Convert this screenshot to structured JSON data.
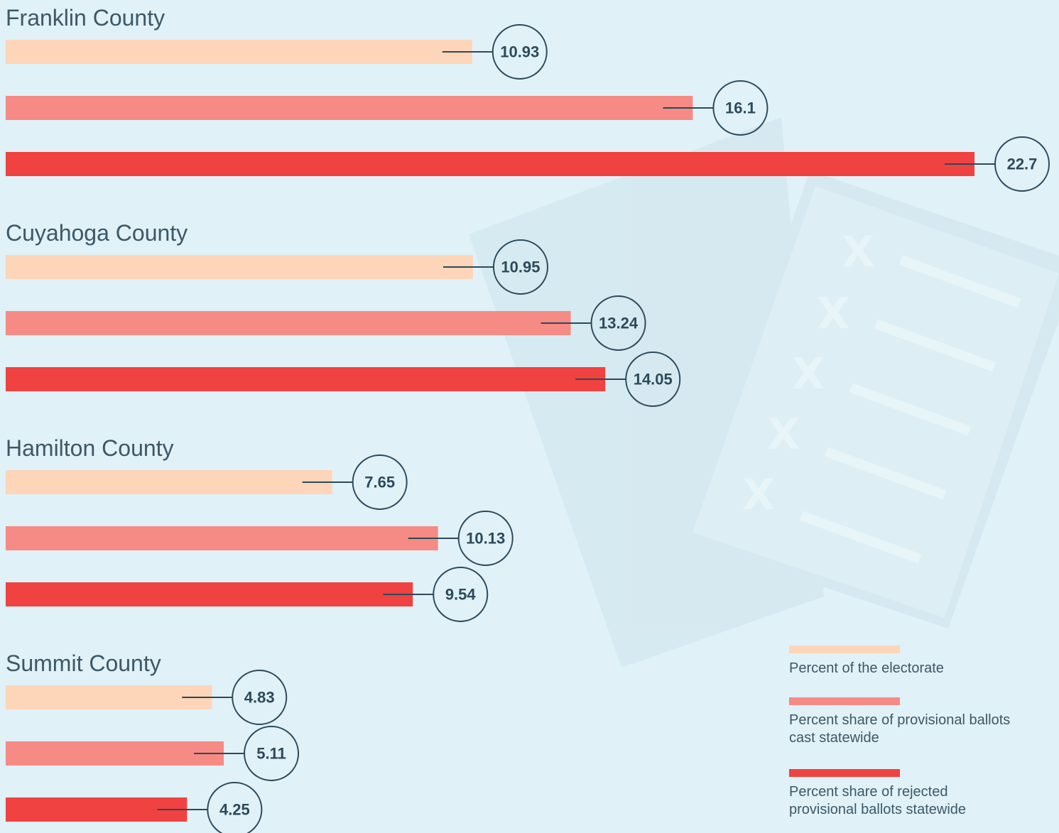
{
  "chart_data": {
    "type": "bar",
    "categories": [
      "Franklin County",
      "Cuyahoga County",
      "Hamilton County",
      "Summit County"
    ],
    "series": [
      {
        "name": "Percent of the electorate",
        "color": "#fdd5b8",
        "values": [
          10.93,
          10.95,
          7.65,
          4.83
        ]
      },
      {
        "name": "Percent share of provisional ballots cast statewide",
        "color": "#f58b84",
        "values": [
          16.1,
          13.24,
          10.13,
          5.11
        ]
      },
      {
        "name": "Percent share of rejected provisional ballots statewide",
        "color": "#ef4241",
        "values": [
          22.7,
          14.05,
          9.54,
          4.25
        ]
      }
    ]
  }
}
